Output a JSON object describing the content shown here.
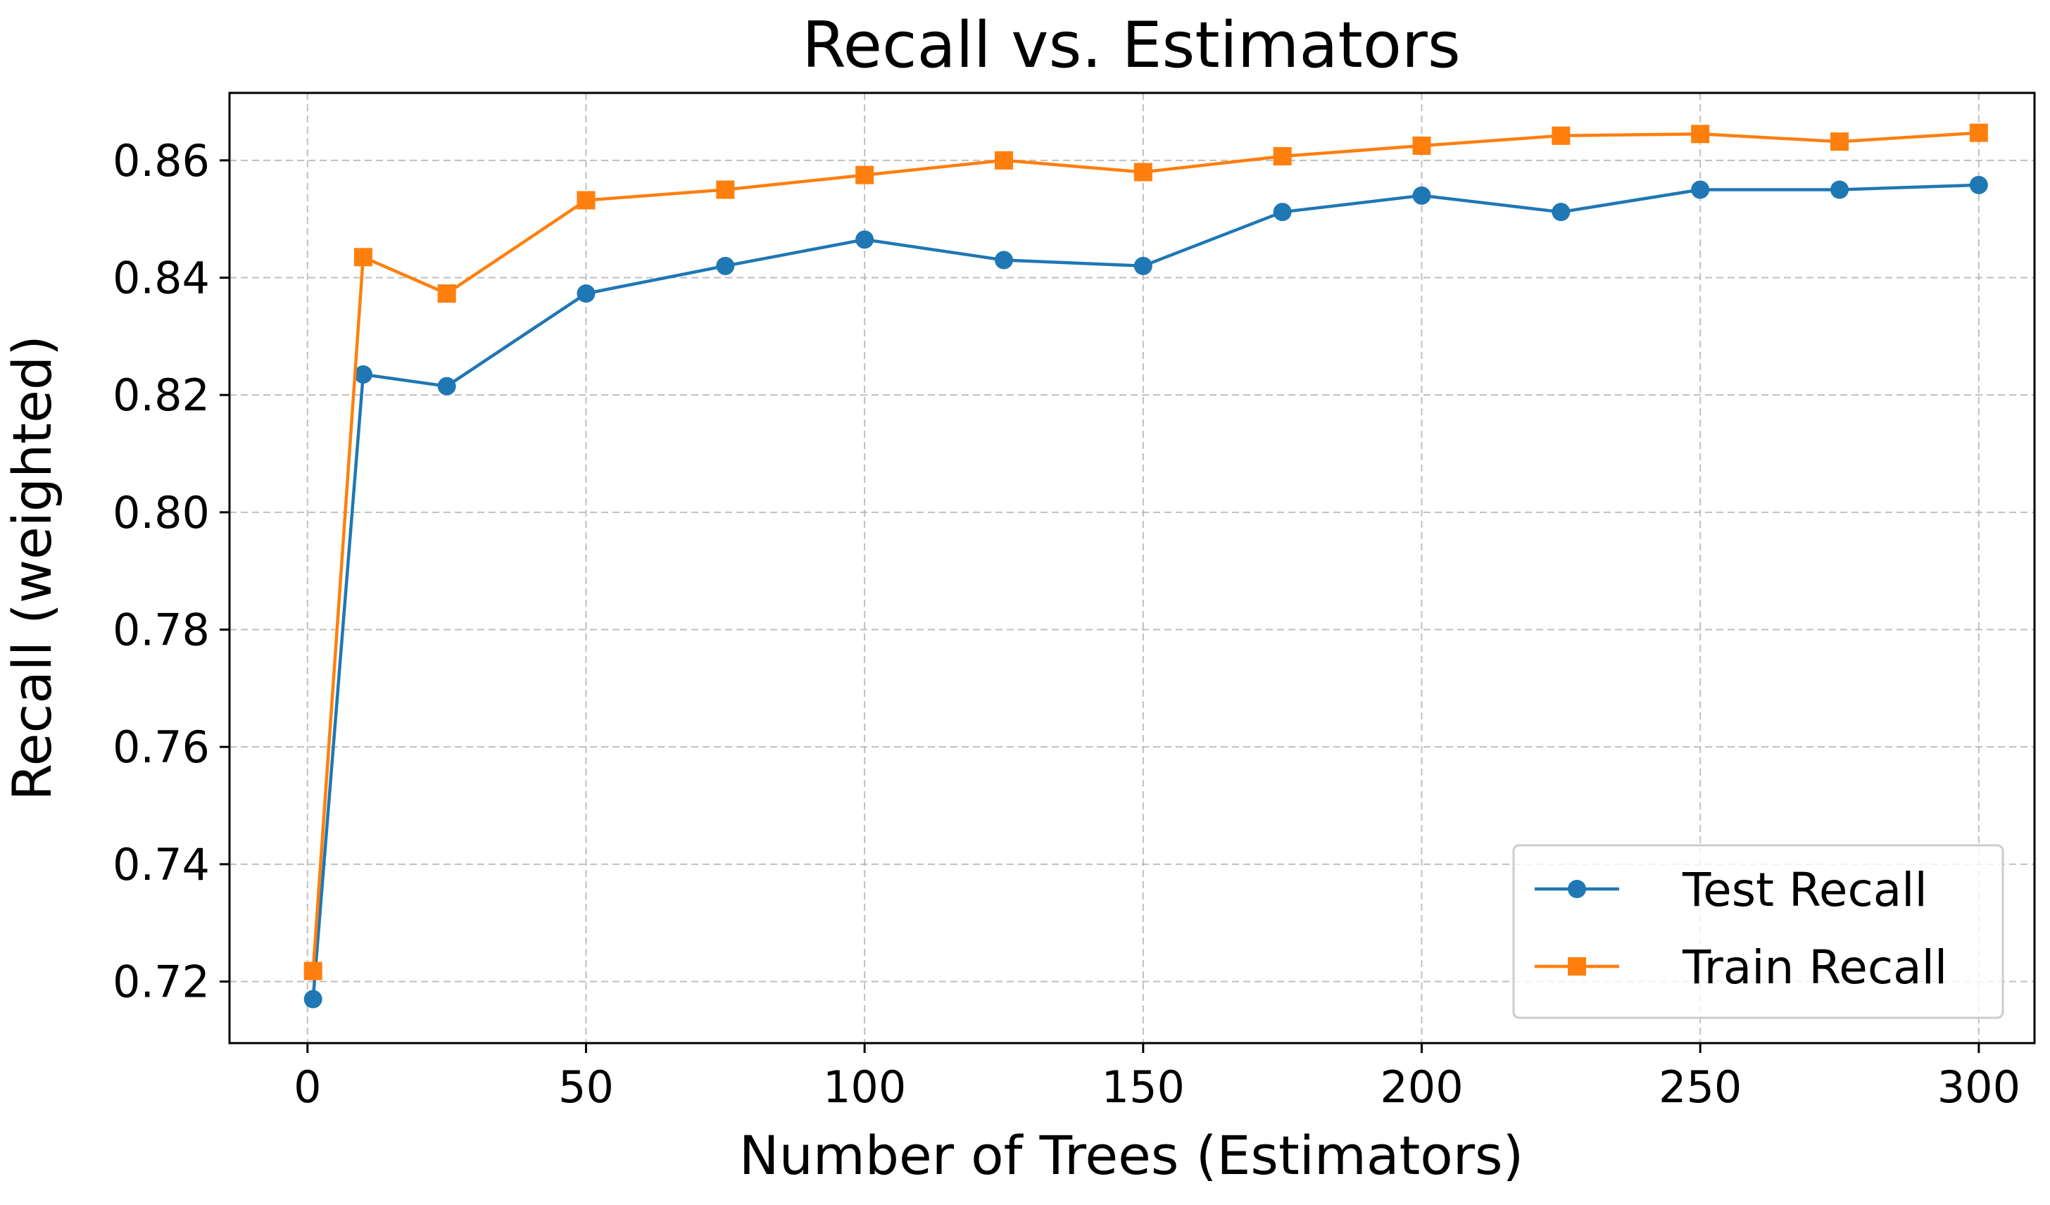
{
  "chart_data": {
    "type": "line",
    "title": "Recall vs. Estimators",
    "xlabel": "Number of Trees (Estimators)",
    "ylabel": "Recall (weighted)",
    "xlim": [
      -14,
      310
    ],
    "ylim": [
      0.7095,
      0.8715
    ],
    "xticks": [
      0,
      50,
      100,
      150,
      200,
      250,
      300
    ],
    "yticks": [
      0.72,
      0.74,
      0.76,
      0.78,
      0.8,
      0.82,
      0.84,
      0.86
    ],
    "ytick_labels": [
      "0.72",
      "0.74",
      "0.76",
      "0.78",
      "0.80",
      "0.82",
      "0.84",
      "0.86"
    ],
    "grid": true,
    "legend_position": "lower-right",
    "x": [
      1,
      10,
      25,
      50,
      75,
      100,
      125,
      150,
      175,
      200,
      225,
      250,
      275,
      300
    ],
    "series": [
      {
        "name": "Test Recall",
        "marker": "circle",
        "color": "#1f77b4",
        "values": [
          0.717,
          0.8235,
          0.8215,
          0.8373,
          0.842,
          0.8465,
          0.843,
          0.842,
          0.8512,
          0.854,
          0.8512,
          0.855,
          0.855,
          0.8558
        ]
      },
      {
        "name": "Train Recall",
        "marker": "square",
        "color": "#ff7f0e",
        "values": [
          0.7218,
          0.8435,
          0.8373,
          0.8532,
          0.855,
          0.8575,
          0.86,
          0.858,
          0.8607,
          0.8625,
          0.8642,
          0.8645,
          0.8632,
          0.8647
        ]
      }
    ]
  }
}
